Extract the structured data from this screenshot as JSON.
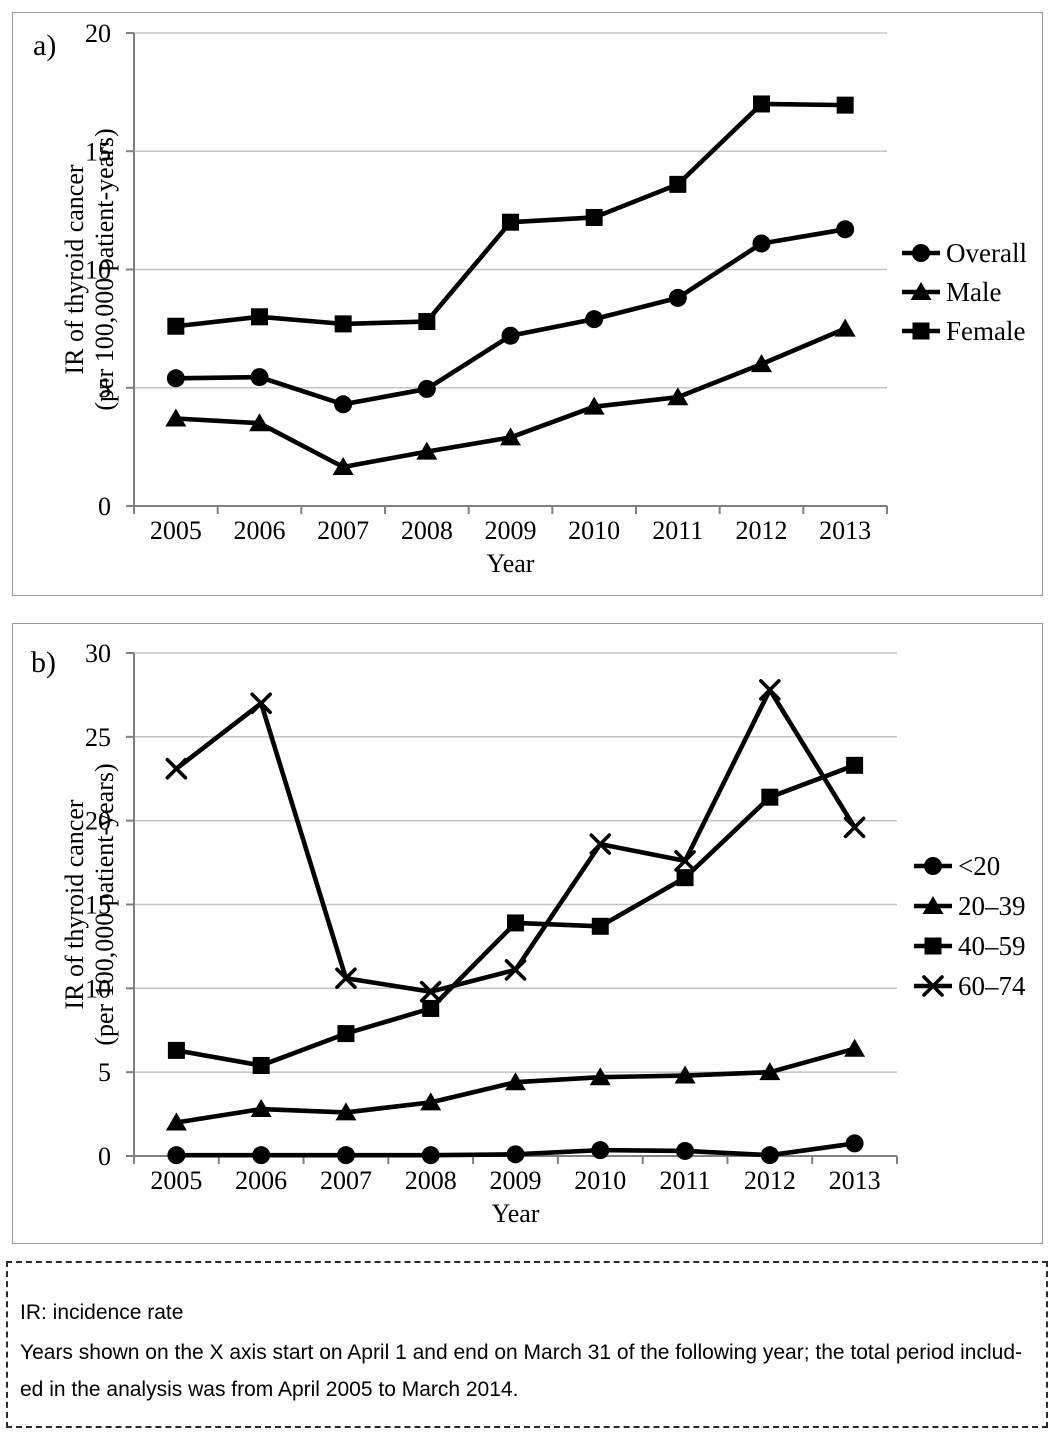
{
  "figure": {
    "panels": [
      {
        "id": "a",
        "label": "a)"
      },
      {
        "id": "b",
        "label": "b)"
      }
    ]
  },
  "chart_data": [
    {
      "panel": "a",
      "type": "line",
      "categories": [
        "2005",
        "2006",
        "2007",
        "2008",
        "2009",
        "2010",
        "2011",
        "2012",
        "2013"
      ],
      "series": [
        {
          "name": "Overall",
          "marker": "circle",
          "color": "#000000",
          "values": [
            5.4,
            5.45,
            4.3,
            4.95,
            7.2,
            7.9,
            8.8,
            11.1,
            11.7
          ]
        },
        {
          "name": "Male",
          "marker": "triangle",
          "color": "#000000",
          "values": [
            3.7,
            3.5,
            1.65,
            2.3,
            2.9,
            4.2,
            4.6,
            6.0,
            7.5
          ]
        },
        {
          "name": "Female",
          "marker": "square",
          "color": "#000000",
          "values": [
            7.6,
            8.0,
            7.7,
            7.8,
            12.0,
            12.2,
            13.6,
            17.0,
            16.95
          ]
        }
      ],
      "xlabel": "Year",
      "ylabel": [
        "IR of thyroid cancer",
        "(per 100,000 patient-years)"
      ],
      "ylim": [
        0,
        20
      ],
      "ytick_step": 5,
      "grid": true,
      "legend_position": "right",
      "gridline_color": "#c6c6c6",
      "axis_color": "#808080",
      "series_color": "#000000"
    },
    {
      "panel": "b",
      "type": "line",
      "categories": [
        "2005",
        "2006",
        "2007",
        "2008",
        "2009",
        "2010",
        "2011",
        "2012",
        "2013"
      ],
      "series": [
        {
          "name": "<20",
          "marker": "circle",
          "color": "#000000",
          "values": [
            0.05,
            0.05,
            0.05,
            0.05,
            0.1,
            0.35,
            0.3,
            0.05,
            0.75
          ]
        },
        {
          "name": "20–39",
          "marker": "triangle",
          "color": "#000000",
          "values": [
            2.0,
            2.8,
            2.6,
            3.2,
            4.4,
            4.7,
            4.8,
            5.0,
            6.4
          ]
        },
        {
          "name": "40–59",
          "marker": "square",
          "color": "#000000",
          "values": [
            6.3,
            5.4,
            7.3,
            8.8,
            13.9,
            13.7,
            16.6,
            21.4,
            23.3
          ]
        },
        {
          "name": "60–74",
          "marker": "x",
          "color": "#000000",
          "values": [
            23.1,
            27.0,
            10.6,
            9.8,
            11.1,
            18.6,
            17.6,
            27.8,
            19.6
          ]
        }
      ],
      "xlabel": "Year",
      "ylabel": [
        "IR of thyroid cancer",
        "(per 100,000 patient-years)"
      ],
      "ylim": [
        0,
        30
      ],
      "ytick_step": 5,
      "grid": true,
      "legend_position": "right",
      "gridline_color": "#c6c6c6",
      "axis_color": "#808080",
      "series_color": "#000000"
    }
  ],
  "footnote": {
    "line1": "IR: incidence rate",
    "line2": "Years shown on the X axis start on April 1 and end on March 31 of the following year; the total period  includ-",
    "line3": "ed in the analysis was from April 2005 to March 2014."
  }
}
